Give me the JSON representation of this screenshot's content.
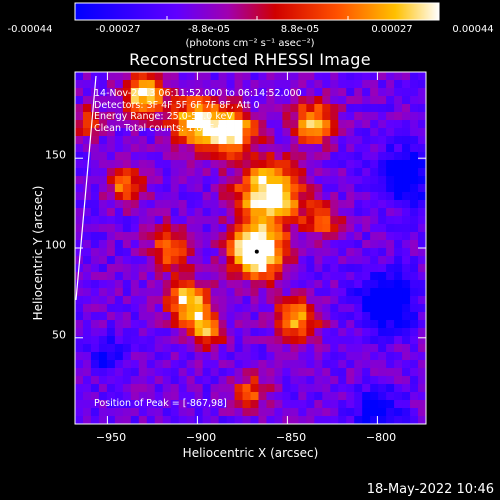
{
  "colorbar": {
    "ticks": [
      "-0.00044",
      "-0.00027",
      "-8.8e-05",
      "8.8e-05",
      "0.00027",
      "0.00044"
    ],
    "units": "(photons cm⁻² s⁻¹ asec⁻²)",
    "colors": [
      "#0000ff",
      "#5a00ff",
      "#a000c0",
      "#d00000",
      "#ff4000",
      "#ff9000",
      "#ffd000",
      "#ffffff"
    ]
  },
  "image_info": {
    "time_range": "14-Nov-2013 06:11:52.000 to 06:14:52.000",
    "detectors": "Detectors: 3F 4F 5F 6F 7F 8F, Att 0",
    "energy_range": "Energy Range: 25.0-50.0 keV",
    "clean_counts": "Clean     Total counts: 1.81E+03",
    "peak_position": "Position of Peak = [-867,98]"
  },
  "footer_date": "18-May-2022 10:46",
  "chart_data": {
    "type": "heatmap",
    "title": "Reconstructed RHESSI Image",
    "xlabel": "Heliocentric X (arcsec)",
    "ylabel": "Heliocentric Y (arcsec)",
    "xlim": [
      -968,
      -773
    ],
    "ylim": [
      2,
      198
    ],
    "x_ticks": [
      -950,
      -900,
      -850,
      -800
    ],
    "y_ticks": [
      50,
      100,
      150
    ],
    "x_tick_labels": [
      "−950",
      "−900",
      "−850",
      "−800"
    ],
    "y_tick_labels": [
      "50",
      "100",
      "150"
    ],
    "value_range": [
      -0.00044,
      0.00044
    ],
    "grid": false,
    "peak": [
      -867,
      98
    ]
  }
}
